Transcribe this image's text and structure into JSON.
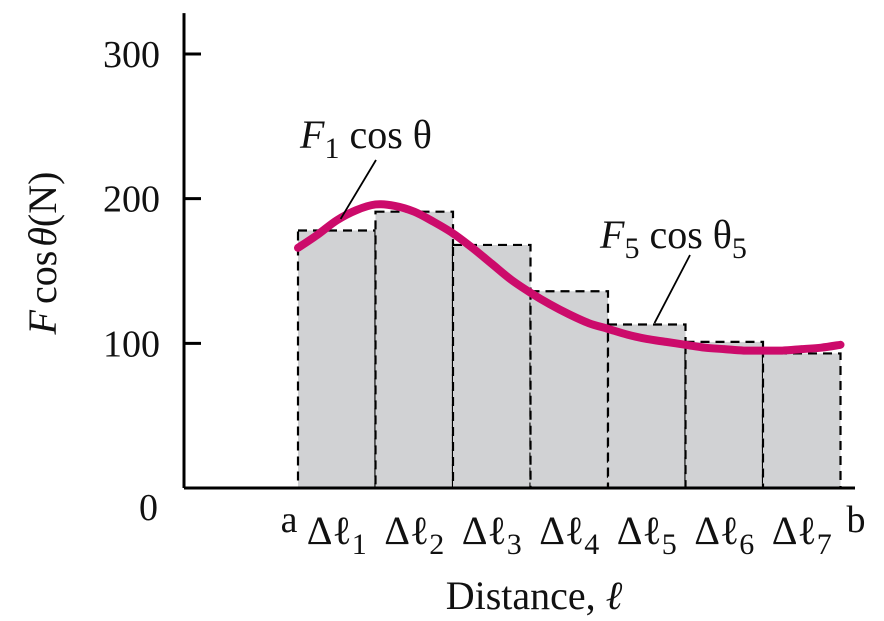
{
  "chart_data": {
    "type": "bar",
    "ylabel": "F cos θ (N)",
    "ylabel_parts": {
      "var": "F",
      "fn": "cos",
      "sym": "θ",
      "unit": "(N)"
    },
    "xlabel": "Distance, ℓ",
    "xlabel_parts": {
      "text": "Distance, ",
      "sym": "ℓ"
    },
    "ylim": [
      0,
      320
    ],
    "y_ticks": [
      {
        "value": 0,
        "label": "0"
      },
      {
        "value": 100,
        "label": "100"
      },
      {
        "value": 200,
        "label": "200"
      },
      {
        "value": 300,
        "label": "300"
      }
    ],
    "x_range": [
      -1.5,
      7.1
    ],
    "interval_start_label": "a",
    "interval_end_label": "b",
    "categories": [
      {
        "main": "Δℓ",
        "sub": "1"
      },
      {
        "main": "Δℓ",
        "sub": "2"
      },
      {
        "main": "Δℓ",
        "sub": "3"
      },
      {
        "main": "Δℓ",
        "sub": "4"
      },
      {
        "main": "Δℓ",
        "sub": "5"
      },
      {
        "main": "Δℓ",
        "sub": "6"
      },
      {
        "main": "Δℓ",
        "sub": "7"
      }
    ],
    "values": [
      178,
      191,
      168,
      136,
      113,
      101,
      93
    ],
    "curve": {
      "color": "#cc0b6b",
      "x": [
        0,
        0.25,
        0.5,
        0.75,
        1.0,
        1.25,
        1.5,
        1.75,
        2.0,
        2.25,
        2.5,
        2.75,
        3.0,
        3.25,
        3.5,
        3.75,
        4.0,
        4.25,
        4.5,
        4.75,
        5.0,
        5.25,
        5.5,
        5.75,
        6.0,
        6.25,
        6.5,
        6.75,
        7.0
      ],
      "y": [
        166,
        175,
        185,
        192,
        196,
        195,
        191,
        184,
        176,
        166,
        155,
        144,
        135,
        127,
        120,
        114,
        110,
        106,
        103,
        101,
        99,
        97,
        96,
        95,
        95,
        95,
        96,
        97,
        99
      ]
    },
    "annotations": [
      {
        "main": "F",
        "sub": "1",
        "rest": " cos θ",
        "sub2": "",
        "x": 0.55,
        "y": 186
      },
      {
        "main": "F",
        "sub": "5",
        "rest": " cos θ",
        "sub2": "5",
        "x": 4.6,
        "y": 114
      }
    ],
    "grid": false,
    "legend": "none"
  }
}
